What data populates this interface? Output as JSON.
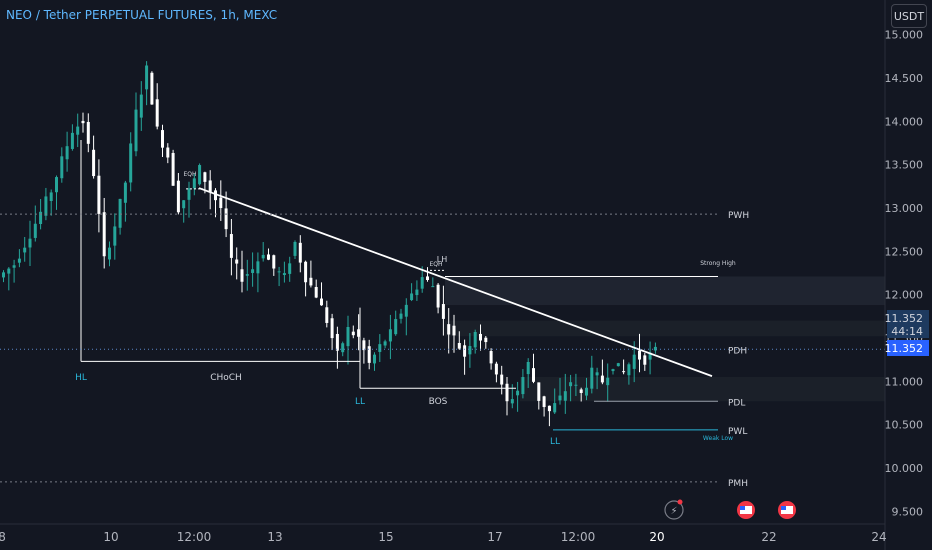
{
  "header": {
    "title": "NEO / Tether PERPETUAL FUTURES, 1h, MEXC"
  },
  "price_scale": {
    "currency_button": "USDT"
  },
  "colors": {
    "background": "#131722",
    "candle_up": "#26a69a",
    "candle_down": "#ffffff",
    "structure_line": "#ffffff",
    "ll_label": "#2ab6d9",
    "price_badge": "#2962ff",
    "axis_text": "#b2b5be",
    "grid_dotted": "#787b86"
  },
  "chart_data": {
    "type": "candlestick",
    "title": "NEO / Tether PERPETUAL FUTURES, 1h, MEXC",
    "x_axis": {
      "tick_labels": [
        "8",
        "10",
        "12:00",
        "13",
        "15",
        "17",
        "12:00",
        "20",
        "22",
        "24"
      ],
      "highlighted": [
        "20"
      ]
    },
    "y_axis": {
      "unit": "USDT",
      "range": [
        9.4,
        15.1
      ],
      "tick_labels": [
        "15.000",
        "14.500",
        "14.000",
        "13.500",
        "13.000",
        "12.500",
        "12.000",
        "11.500",
        "11.000",
        "10.500",
        "10.000",
        "9.500"
      ],
      "tick_values": [
        15.0,
        14.5,
        14.0,
        13.5,
        13.0,
        12.5,
        12.0,
        11.5,
        11.0,
        10.5,
        10.0,
        9.5
      ]
    },
    "current_price": {
      "value": "11.352",
      "countdown": "44:14",
      "price_line": "11.352"
    },
    "price_path": [
      [
        0,
        12.2
      ],
      [
        3,
        12.35
      ],
      [
        6,
        12.7
      ],
      [
        10,
        13.2
      ],
      [
        14,
        13.9
      ],
      [
        16,
        14.0
      ],
      [
        18,
        13.4
      ],
      [
        20,
        12.4
      ],
      [
        22,
        12.8
      ],
      [
        24,
        13.3
      ],
      [
        26,
        14.1
      ],
      [
        28,
        14.6
      ],
      [
        30,
        13.9
      ],
      [
        32,
        13.6
      ],
      [
        34,
        13.0
      ],
      [
        36,
        13.2
      ],
      [
        38,
        13.45
      ],
      [
        40,
        13.2
      ],
      [
        42,
        13.0
      ],
      [
        44,
        12.4
      ],
      [
        46,
        12.2
      ],
      [
        48,
        12.3
      ],
      [
        50,
        12.5
      ],
      [
        52,
        12.3
      ],
      [
        54,
        12.2
      ],
      [
        56,
        12.6
      ],
      [
        58,
        12.2
      ],
      [
        60,
        12.0
      ],
      [
        62,
        11.7
      ],
      [
        64,
        11.3
      ],
      [
        66,
        11.6
      ],
      [
        68,
        11.5
      ],
      [
        70,
        11.2
      ],
      [
        72,
        11.4
      ],
      [
        74,
        11.55
      ],
      [
        76,
        11.8
      ],
      [
        78,
        12.0
      ],
      [
        80,
        12.2
      ],
      [
        82,
        12.1
      ],
      [
        84,
        11.7
      ],
      [
        86,
        11.5
      ],
      [
        88,
        11.3
      ],
      [
        90,
        11.6
      ],
      [
        92,
        11.4
      ],
      [
        94,
        11.1
      ],
      [
        96,
        10.75
      ],
      [
        98,
        10.9
      ],
      [
        100,
        11.2
      ],
      [
        102,
        10.8
      ],
      [
        104,
        10.65
      ],
      [
        106,
        10.8
      ],
      [
        108,
        11.0
      ],
      [
        110,
        10.85
      ],
      [
        112,
        11.1
      ],
      [
        114,
        11.0
      ],
      [
        116,
        11.2
      ],
      [
        118,
        11.1
      ],
      [
        120,
        11.3
      ],
      [
        122,
        11.25
      ],
      [
        124,
        11.35
      ]
    ],
    "structure_lines": [
      {
        "label": "CHoCH",
        "price": 11.23
      },
      {
        "label": "BOS",
        "price": 10.92
      },
      {
        "label": "Strong High",
        "price": 12.21
      }
    ],
    "trendline": {
      "from": 13.23,
      "to": 11.06
    },
    "levels": [
      {
        "label": "PWH",
        "price": 12.93
      },
      {
        "label": "PDH",
        "price": 11.37
      },
      {
        "label": "PDL",
        "price": 10.77
      },
      {
        "label": "PWL",
        "price": 10.44
      },
      {
        "label": "PMH",
        "price": 9.84
      }
    ],
    "annotations": [
      "HL",
      "CHoCH",
      "LL",
      "BOS",
      "LL",
      "EQH",
      "EQH",
      "LH",
      "Strong High",
      "Weak Low"
    ]
  }
}
